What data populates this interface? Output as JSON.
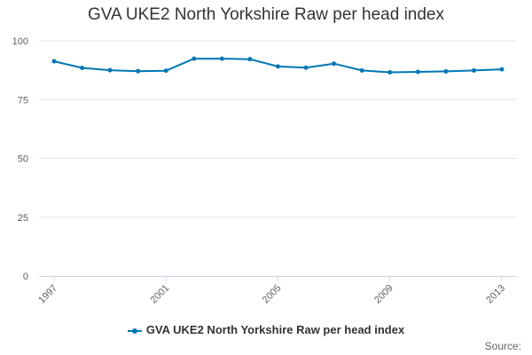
{
  "chart_data": {
    "type": "line",
    "title": "GVA UKE2 North Yorkshire Raw per head index",
    "xlabel": "",
    "ylabel": "",
    "x": [
      1997,
      1998,
      1999,
      2000,
      2001,
      2002,
      2003,
      2004,
      2005,
      2006,
      2007,
      2008,
      2009,
      2010,
      2011,
      2012,
      2013
    ],
    "x_tick_labels": [
      "1997",
      "2001",
      "2005",
      "2009",
      "2013"
    ],
    "y_ticks": [
      0,
      25,
      50,
      75,
      100
    ],
    "ylim": [
      0,
      100
    ],
    "grid": true,
    "legend_position": "bottom",
    "series": [
      {
        "name": "GVA UKE2 North Yorkshire Raw per head index",
        "color": "#0077b5",
        "values": [
          91.3,
          88.5,
          87.5,
          87.1,
          87.3,
          92.4,
          92.4,
          92.2,
          89.1,
          88.6,
          90.3,
          87.4,
          86.6,
          86.8,
          87.0,
          87.4,
          87.9
        ]
      }
    ]
  },
  "source_label": "Source:"
}
